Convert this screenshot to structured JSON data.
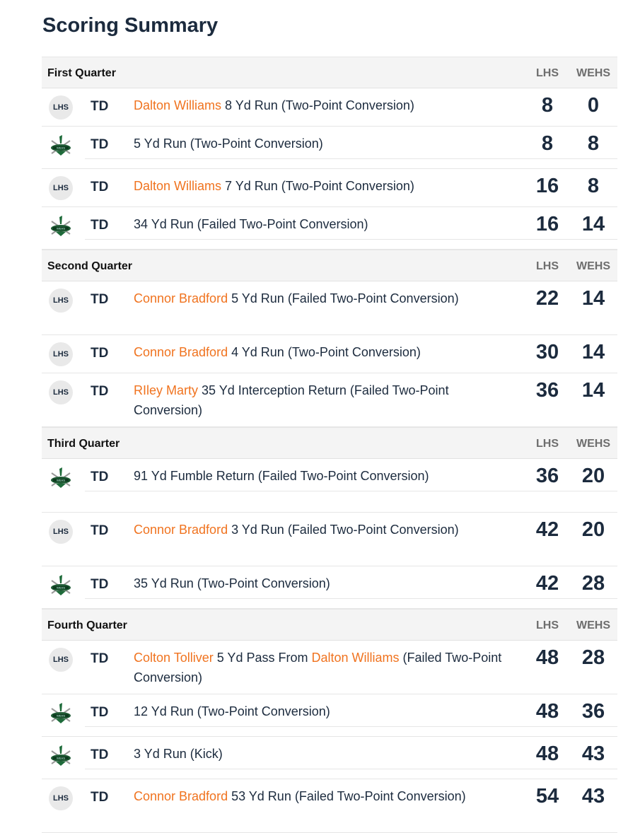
{
  "title": "Scoring Summary",
  "columns": {
    "home": "LHS",
    "away": "WEHS"
  },
  "colors": {
    "player": "#f0731f",
    "text": "#1c2b3e"
  },
  "quarters": [
    {
      "name": "First Quarter",
      "plays": [
        {
          "team": "LHS",
          "type": "TD",
          "player": "Dalton Williams",
          "text": "8 Yd Run (Two-Point Conversion)",
          "home": "8",
          "away": "0"
        },
        {
          "team": "WEHS",
          "type": "TD",
          "player": "",
          "text": "5 Yd Run (Two-Point Conversion)",
          "home": "8",
          "away": "8"
        },
        {
          "team": "LHS",
          "type": "TD",
          "player": "Dalton Williams",
          "text": "7 Yd Run (Two-Point Conversion)",
          "home": "16",
          "away": "8"
        },
        {
          "team": "WEHS",
          "type": "TD",
          "player": "",
          "text": "34 Yd Run (Failed Two-Point Conversion)",
          "home": "16",
          "away": "14"
        }
      ]
    },
    {
      "name": "Second Quarter",
      "plays": [
        {
          "team": "LHS",
          "type": "TD",
          "player": "Connor Bradford",
          "text": "5 Yd Run (Failed Two-Point Conversion)",
          "home": "22",
          "away": "14"
        },
        {
          "team": "LHS",
          "type": "TD",
          "player": "Connor Bradford",
          "text": "4 Yd Run (Two-Point Conversion)",
          "home": "30",
          "away": "14"
        },
        {
          "team": "LHS",
          "type": "TD",
          "player": "RIley Marty",
          "text": "35 Yd Interception Return (Failed Two-Point Conversion)",
          "home": "36",
          "away": "14"
        }
      ]
    },
    {
      "name": "Third Quarter",
      "plays": [
        {
          "team": "WEHS",
          "type": "TD",
          "player": "",
          "text": "91 Yd Fumble Return (Failed Two-Point Conversion)",
          "home": "36",
          "away": "20"
        },
        {
          "team": "LHS",
          "type": "TD",
          "player": "Connor Bradford",
          "text": "3 Yd Run (Failed Two-Point Conversion)",
          "home": "42",
          "away": "20"
        },
        {
          "team": "WEHS",
          "type": "TD",
          "player": "",
          "text": "35 Yd Run (Two-Point Conversion)",
          "home": "42",
          "away": "28"
        }
      ]
    },
    {
      "name": "Fourth Quarter",
      "plays": [
        {
          "team": "LHS",
          "type": "TD",
          "player": "Colton Tolliver",
          "text": "5 Yd Pass From",
          "player2": "Dalton Williams",
          "text2": "(Failed Two-Point Conversion)",
          "home": "48",
          "away": "28"
        },
        {
          "team": "WEHS",
          "type": "TD",
          "player": "",
          "text": "12 Yd Run (Two-Point Conversion)",
          "home": "48",
          "away": "36"
        },
        {
          "team": "WEHS",
          "type": "TD",
          "player": "",
          "text": "3 Yd Run (Kick)",
          "home": "48",
          "away": "43"
        },
        {
          "team": "LHS",
          "type": "TD",
          "player": "Connor Bradford",
          "text": "53 Yd Run (Failed Two-Point Conversion)",
          "home": "54",
          "away": "43"
        }
      ]
    }
  ]
}
